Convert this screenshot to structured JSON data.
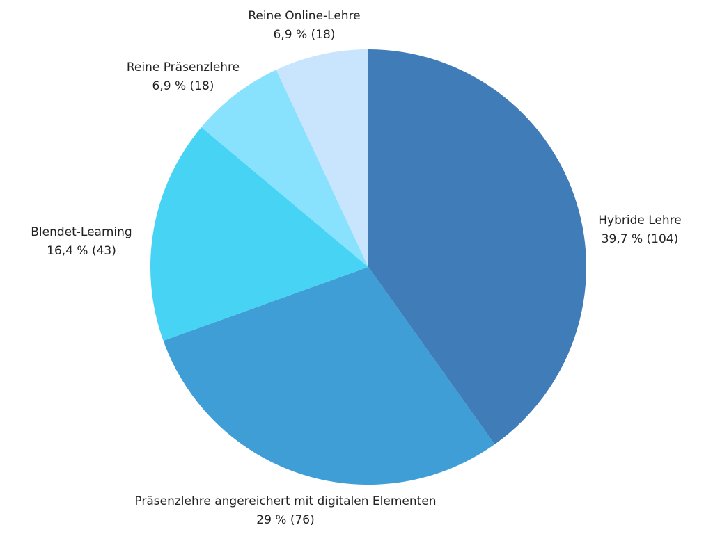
{
  "chart_data": {
    "type": "pie",
    "slices": [
      {
        "name": "Hybride Lehre",
        "value": 104,
        "percent_label": "39,7 % (104)",
        "color": "#3f7cb8"
      },
      {
        "name": "Präsenzlehre angereichert mit digitalen Elementen",
        "value": 76,
        "percent_label": "29 % (76)",
        "color": "#3f9ed6"
      },
      {
        "name": "Blendet-Learning",
        "value": 43,
        "percent_label": "16,4 % (43)",
        "color": "#47d3f4"
      },
      {
        "name": "Reine Präsenzlehre",
        "value": 18,
        "percent_label": "6,9 % (18)",
        "color": "#88e2fd"
      },
      {
        "name": "Reine Online-Lehre",
        "value": 18,
        "percent_label": "6,9 % (18)",
        "color": "#c8e5fd"
      }
    ]
  }
}
